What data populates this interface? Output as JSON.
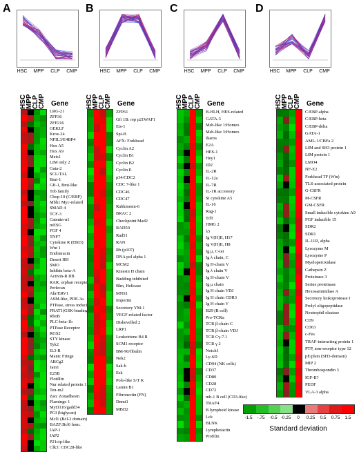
{
  "stages": [
    "HSC",
    "MPP",
    "CLP",
    "CMP"
  ],
  "gene_header": "Gene",
  "scale": {
    "ticks": [
      "-1.5",
      "-.75",
      "-0.5",
      "-0.25",
      "0",
      "0.25",
      "0.5",
      "0.75",
      "1.5"
    ],
    "title": "Standard deviation",
    "colors": [
      "#00a000",
      "#22c022",
      "#55d055",
      "#88e088",
      "#000000",
      "#e87a7a",
      "#e84040",
      "#e01818",
      "#ff0000"
    ]
  },
  "panels": [
    {
      "letter": "A",
      "profile": [
        0.85,
        0.55,
        0.12,
        0.08
      ],
      "genes": [
        "LRG-21",
        "ZFP36",
        "ZFP216",
        "GEKLF",
        "Krox-24",
        "NFIL3/E4BP4",
        "Hox A5",
        "Hox A9",
        "Meis1",
        "LIM only 2",
        "Gata-2",
        "SCL/TAL",
        "Bmi-1",
        "Gfi-1, Bmi-like",
        "Tob family",
        "Chop-10 (C/EBP)",
        "Mbh1 Myc-related",
        "SMAD 4",
        "TCF-3",
        "Catenin-α1",
        "mESG",
        "FGF 4",
        "TNF7",
        "Cytokine R (EBI3)",
        "Wnt 1",
        "Endomucin",
        "Desert HH",
        "SMO",
        "Inhibin beta-A",
        "Activin-R IIB",
        "RAR, orphan receptor",
        "Perlecan",
        "Ahr/ERV1",
        "ASM-like, PDE-3a",
        "PTPase, stress inducible",
        "FRAT1(GSK-binding)",
        "RhoB",
        "PLC-beta-1b",
        "PTPase Receptor",
        "RGS2",
        "STY kinase",
        "Tyk2",
        "IL3-R",
        "Manic Fringe",
        "ABCg2",
        "Jam1",
        "E25B",
        "Flotillin",
        "Nur related protein 1",
        "Ten-m2",
        "Zan: Zonadhesin",
        "Flamingo 1",
        "MyD116/gadd34",
        "PGI (biglycan)",
        "Mcl1 (Bcl-2 domain)",
        "BAZF:Bcl6 hom.",
        "IAP-1",
        "IAP2",
        "P21cip-like",
        "Clk3: CDC28-like"
      ]
    },
    {
      "letter": "B",
      "profile": [
        0.15,
        0.9,
        0.88,
        0.1
      ],
      "genes": [
        "ZFP61",
        "Gfi 1B: rep p21WAF1",
        "Ets-1",
        "Spi-B",
        "AFX: Forkhead",
        "Cyclin A2",
        "Cyclin B1",
        "Cyclin B2",
        "Cyclin E",
        "p34/CDC2",
        "CDC 7-like 1",
        "CDC46",
        "CDC47",
        "Rabkinesin-6",
        "BRAC 2",
        "Checkpoint Mad2",
        "RAD50",
        "Rad51",
        "RAN",
        "Rb (p107)",
        "DNA pol alpha 1",
        "MCM2",
        "Kinesin H chain",
        "Budding inhibited",
        "Blm, Helicase",
        "MNS1",
        "Importin",
        "Secretory YM-1",
        "VEGF-related factor",
        "Dishevelled 2",
        "LRP1",
        "Leukotriene B4 R",
        "SCM1 receptor",
        "BM-90/fibulin",
        "Nek2",
        "Sak-b",
        "Esk",
        "Polo-like S/T K",
        "Lamin B1",
        "Fibronectin (FN)",
        "Dnmt1",
        "MBD2"
      ]
    },
    {
      "letter": "C",
      "profile": [
        0.1,
        0.3,
        0.92,
        0.12
      ],
      "genes": [
        "B-HLH, HES-related",
        "GATA-3",
        "Msh-like 1:Homeo",
        "Msh-like 3:Homeo",
        "Ikaros",
        "E2A",
        "HES-1",
        "Hey1",
        "ID2",
        "IL-2R",
        "IL-12a",
        "IL-7R",
        "IL-1R accessory",
        "SI cytokine A5",
        "IL-16",
        "Rag-1",
        "TdT",
        "HMG 2",
        "λ5",
        "Ig V(H)II, H17",
        "Ig V(H)II, H8",
        "Ig μ, C-ter",
        "Ig λ chain, C",
        "Ig H-chain V",
        "Ig λ chain V",
        "Ig H-chain V",
        "Ig μ chain",
        "Ig H chain VDJ",
        "Ig H chain CDR3",
        "Ig H chain V",
        "B29 (B cell)",
        "Pro-TCRα",
        "TCR β-chain C",
        "TCR β-chain VDJ",
        "TCR Cγ-7.1",
        "TCR γ 2",
        "Notch1",
        "Ly-6D",
        "CD94 (NK cells)",
        "CD37",
        "CD80",
        "CD28",
        "CD72",
        "mb-1 B cell (CD3-like)",
        "TRAF4",
        "B lymphoid kinase",
        "Lck",
        "BLNK",
        "Lymphotactin",
        "Profilin"
      ]
    },
    {
      "letter": "D",
      "profile": [
        0.2,
        0.45,
        0.1,
        0.92
      ],
      "genes": [
        "C/EBP-alpha",
        "C/EBP-beta",
        "C/EBP-delta",
        "GATA-1",
        "AML-1/CBFa 2",
        "LIM and SH3 protein 1",
        "LIM protein 1",
        "LMO4",
        "NF-E2",
        "Forkhead TF (Win)",
        "TLS-associated protein",
        "G-CSFR",
        "M-CSFR",
        "GM-CSFR",
        "Small inducible cytokine A9",
        "FGF inducible 15",
        "SDR2",
        "SDR1",
        "IL-11R, alpha",
        "Lysozyme M",
        "Lysozyme P",
        "Myeloperoxidase",
        "Cathepsin Z",
        "Proteinase 3",
        "Serine proteinase",
        "Hexosaminidase A",
        "Secretory leukoprotease I",
        "Prolyl oligopeptidase",
        "Neutrophil elastase",
        "CD9",
        "CD63",
        "c-Fes",
        "TRAF-interacting protein 1",
        "PTP, non-receptor type 12",
        "pE/plsm (SH3-domain)",
        "MIP 2",
        "Thrombospondin 3",
        "IGF-II?",
        "PEDF",
        "VLA-3 alpha"
      ]
    }
  ]
}
